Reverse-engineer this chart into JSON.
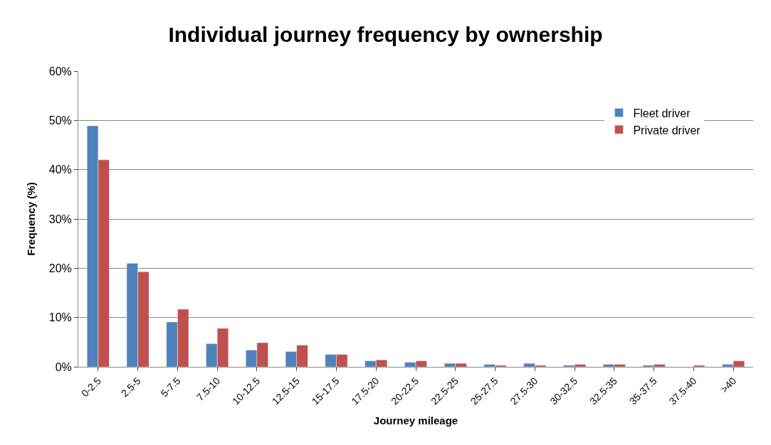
{
  "chart_data": {
    "type": "bar",
    "title": "Individual journey frequency by ownership",
    "xlabel": "Journey mileage",
    "ylabel": "Frequency (%)",
    "categories": [
      "0-2.5",
      "2.5-5",
      "5-7.5",
      "7.5-10",
      "10-12.5",
      "12.5-15",
      "15-17.5",
      "17.5-20",
      "20-22.5",
      "22.5-25",
      "25-27.5",
      "27.5-30",
      "30-32.5",
      "32.5-35",
      "35-37.5",
      "37.5-40",
      ">40"
    ],
    "series": [
      {
        "name": "Fleet driver",
        "color": "#4f81bd",
        "values": [
          48.9,
          21.0,
          9.1,
          4.7,
          3.4,
          3.1,
          2.5,
          1.2,
          0.9,
          0.7,
          0.5,
          0.7,
          0.3,
          0.5,
          0.3,
          null,
          0.5
        ]
      },
      {
        "name": "Private driver",
        "color": "#c0504d",
        "values": [
          42.0,
          19.3,
          11.7,
          7.8,
          4.9,
          4.4,
          2.5,
          1.4,
          1.2,
          0.7,
          0.3,
          0.3,
          0.5,
          0.5,
          0.5,
          0.3,
          1.2
        ]
      }
    ],
    "ylim": [
      0,
      60
    ],
    "yticks": [
      {
        "value": 0,
        "label": "0%"
      },
      {
        "value": 10,
        "label": "10%"
      },
      {
        "value": 20,
        "label": "20%"
      },
      {
        "value": 30,
        "label": "30%"
      },
      {
        "value": 40,
        "label": "40%"
      },
      {
        "value": 50,
        "label": "50%"
      },
      {
        "value": 60,
        "label": "60%"
      }
    ],
    "grid": "y",
    "legend": "top right"
  }
}
